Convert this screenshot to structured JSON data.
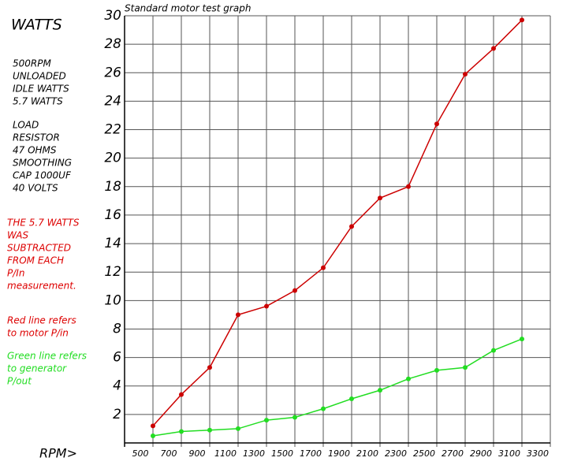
{
  "chart_data": {
    "type": "line",
    "title": "Standard motor test graph",
    "y_label": "WATTS",
    "x_label": "RPM>",
    "x": [
      500,
      700,
      900,
      1100,
      1300,
      1500,
      1700,
      1900,
      2100,
      2300,
      2500,
      2700,
      2900,
      3100
    ],
    "series": [
      {
        "name": "motor P/in",
        "color": "#cc0000",
        "values": [
          1.2,
          3.4,
          5.3,
          9.0,
          9.6,
          10.7,
          12.3,
          15.2,
          17.2,
          18.0,
          22.4,
          25.9,
          27.7,
          29.7
        ]
      },
      {
        "name": "generator P/out",
        "color": "#22dd22",
        "values": [
          0.5,
          0.8,
          0.9,
          1.0,
          1.6,
          1.8,
          2.4,
          3.1,
          3.7,
          4.5,
          5.1,
          5.3,
          6.5,
          7.3
        ]
      }
    ],
    "xlim": [
      300,
      3300
    ],
    "xticks": [
      500,
      700,
      900,
      1100,
      1300,
      1500,
      1700,
      1900,
      2100,
      2300,
      2500,
      2700,
      2900,
      3100,
      3300
    ],
    "ylim": [
      0,
      30
    ],
    "yticks": [
      2,
      4,
      6,
      8,
      10,
      12,
      14,
      16,
      18,
      20,
      22,
      24,
      26,
      28,
      30
    ],
    "grid": true,
    "annotations": [
      {
        "color": "#000000",
        "lines": [
          "500RPM",
          " UNLOADED",
          " IDLE WATTS",
          " 5.7 WATTS"
        ]
      },
      {
        "color": "#000000",
        "lines": [
          "LOAD",
          "RESISTOR",
          "47 OHMS",
          "SMOOTHING",
          "CAP 1000UF",
          "40 VOLTS"
        ]
      },
      {
        "color": "#dd0000",
        "lines": [
          "THE 5.7 WATTS",
          "WAS",
          "SUBTRACTED",
          "FROM EACH",
          "P/In",
          "measurement."
        ]
      },
      {
        "color": "#dd0000",
        "lines": [
          "Red line refers",
          "to motor P/in"
        ]
      },
      {
        "color": "#22dd22",
        "lines": [
          "Green line refers",
          "to generator",
          "P/out"
        ]
      }
    ]
  }
}
